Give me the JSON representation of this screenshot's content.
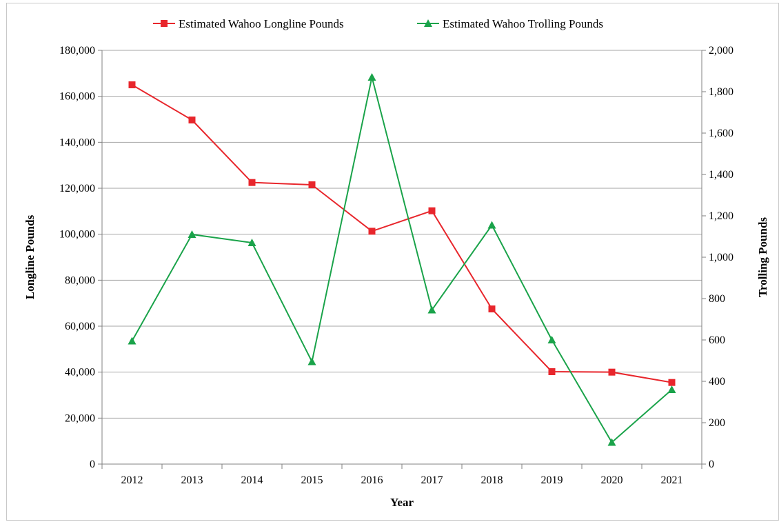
{
  "chart_data": {
    "type": "line",
    "xlabel": "Year",
    "ylabel_left": "Longline Pounds",
    "ylabel_right": "Trolling Pounds",
    "categories": [
      "2012",
      "2013",
      "2014",
      "2015",
      "2016",
      "2017",
      "2018",
      "2019",
      "2020",
      "2021"
    ],
    "y_left": {
      "min": 0,
      "max": 180000,
      "step": 20000,
      "tick_labels": [
        "0",
        "20,000",
        "40,000",
        "60,000",
        "80,000",
        "100,000",
        "120,000",
        "140,000",
        "160,000",
        "180,000"
      ]
    },
    "y_right": {
      "min": 0,
      "max": 2000,
      "step": 200,
      "tick_labels": [
        "0",
        "200",
        "400",
        "600",
        "800",
        "1,000",
        "1,200",
        "1,400",
        "1,600",
        "1,800",
        "2,000"
      ]
    },
    "grid": true,
    "legend_position": "top",
    "series": [
      {
        "name": "Estimated Wahoo Longline Pounds",
        "axis": "left",
        "color": "#e8262c",
        "marker": "square",
        "values": [
          165000,
          149700,
          122500,
          121500,
          101300,
          110200,
          67500,
          40200,
          40000,
          35500
        ]
      },
      {
        "name": "Estimated Wahoo Trolling Pounds",
        "axis": "right",
        "color": "#1aa34a",
        "marker": "triangle",
        "values": [
          595,
          1110,
          1070,
          495,
          1870,
          745,
          1155,
          600,
          105,
          360
        ]
      }
    ]
  }
}
